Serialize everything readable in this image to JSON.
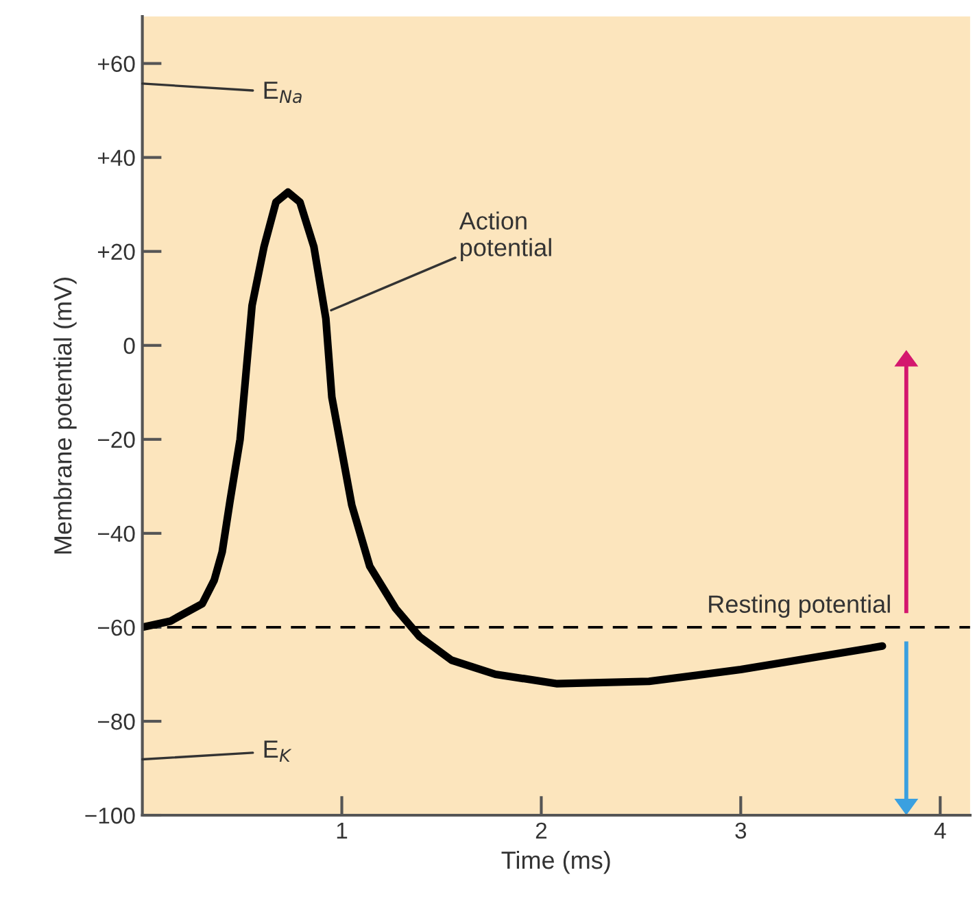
{
  "chart_data": {
    "type": "line",
    "xlabel": "Time (ms)",
    "ylabel": "Membrane potential (mV)",
    "x": [
      0,
      0.14,
      0.3,
      0.36,
      0.4,
      0.44,
      0.49,
      0.55,
      0.61,
      0.67,
      0.73,
      0.79,
      0.86,
      0.92,
      0.95,
      1.05,
      1.14,
      1.27,
      1.39,
      1.55,
      1.77,
      2.08,
      2.54,
      3.0,
      3.71
    ],
    "series": [
      {
        "color": "#000000",
        "values": [
          -60,
          -58.7,
          -55,
          -50,
          -44,
          -33,
          -20,
          8.5,
          21,
          30.5,
          32.6,
          30.5,
          21,
          5.7,
          -11,
          -34,
          -47,
          -56,
          -62,
          -67,
          -70,
          -72,
          -71.5,
          -69,
          -64
        ]
      }
    ],
    "xlim": [
      0,
      4.15
    ],
    "ylim": [
      -100,
      70
    ],
    "xticks": [
      1,
      2,
      3,
      4
    ],
    "yticks": [
      {
        "value": 60,
        "label": "+60"
      },
      {
        "value": 40,
        "label": "+40"
      },
      {
        "value": 20,
        "label": "+20"
      },
      0,
      {
        "value": -20,
        "label": "−20"
      },
      {
        "value": -40,
        "label": "−40"
      },
      {
        "value": -60,
        "label": "−60"
      },
      {
        "value": -80,
        "label": "−80"
      },
      {
        "value": -100,
        "label": "−100"
      }
    ],
    "ref_lines": [
      {
        "axis": "y",
        "value": -60,
        "label": "Resting potential",
        "color": "#000000",
        "line_style": "dashed"
      }
    ],
    "annotations": [
      "E$_{Na}$",
      "E$_{K}$",
      {
        "text": "Action\npotential",
        "x": 0.92,
        "y": 7
      }
    ],
    "grid": false,
    "marker": "none",
    "line_style": "solid"
  }
}
